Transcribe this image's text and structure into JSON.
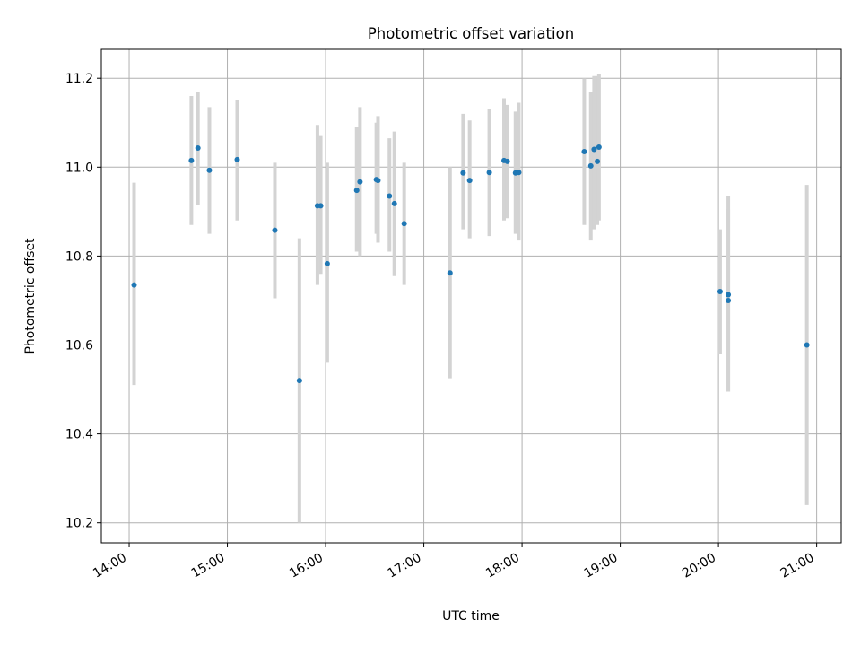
{
  "chart_data": {
    "type": "scatter",
    "title": "Photometric offset variation",
    "xlabel": "UTC time",
    "ylabel": "Photometric offset",
    "grid": true,
    "legend": "none",
    "xlim": [
      "13:43",
      "21:15"
    ],
    "ylim": [
      10.155,
      11.265
    ],
    "x_ticks": [
      "14:00",
      "15:00",
      "16:00",
      "17:00",
      "18:00",
      "19:00",
      "20:00",
      "21:00"
    ],
    "y_ticks": [
      10.2,
      10.4,
      10.6,
      10.8,
      11.0,
      11.2
    ],
    "colors": {
      "point": "#1f77b4",
      "errorbar": "#d3d3d3",
      "grid": "#b0b0b0"
    },
    "series": [
      {
        "points": [
          {
            "x": "14:03",
            "y": 10.735,
            "ylow": 10.51,
            "yhigh": 10.965
          },
          {
            "x": "14:38",
            "y": 11.015,
            "ylow": 10.87,
            "yhigh": 11.16
          },
          {
            "x": "14:42",
            "y": 11.043,
            "ylow": 10.915,
            "yhigh": 11.17
          },
          {
            "x": "14:49",
            "y": 10.993,
            "ylow": 10.85,
            "yhigh": 11.135
          },
          {
            "x": "15:06",
            "y": 11.017,
            "ylow": 10.88,
            "yhigh": 11.15
          },
          {
            "x": "15:29",
            "y": 10.858,
            "ylow": 10.705,
            "yhigh": 11.01
          },
          {
            "x": "15:44",
            "y": 10.52,
            "ylow": 10.2,
            "yhigh": 10.84
          },
          {
            "x": "15:55",
            "y": 10.913,
            "ylow": 10.735,
            "yhigh": 11.095
          },
          {
            "x": "15:57",
            "y": 10.913,
            "ylow": 10.76,
            "yhigh": 11.07
          },
          {
            "x": "16:01",
            "y": 10.783,
            "ylow": 10.56,
            "yhigh": 11.01
          },
          {
            "x": "16:19",
            "y": 10.948,
            "ylow": 10.81,
            "yhigh": 11.09
          },
          {
            "x": "16:21",
            "y": 10.967,
            "ylow": 10.8,
            "yhigh": 11.135
          },
          {
            "x": "16:31",
            "y": 10.972,
            "ylow": 10.85,
            "yhigh": 11.1
          },
          {
            "x": "16:32",
            "y": 10.97,
            "ylow": 10.83,
            "yhigh": 11.115
          },
          {
            "x": "16:39",
            "y": 10.935,
            "ylow": 10.81,
            "yhigh": 11.065
          },
          {
            "x": "16:42",
            "y": 10.918,
            "ylow": 10.755,
            "yhigh": 11.08
          },
          {
            "x": "16:48",
            "y": 10.873,
            "ylow": 10.735,
            "yhigh": 11.01
          },
          {
            "x": "17:16",
            "y": 10.762,
            "ylow": 10.525,
            "yhigh": 11.0
          },
          {
            "x": "17:24",
            "y": 10.987,
            "ylow": 10.86,
            "yhigh": 11.12
          },
          {
            "x": "17:28",
            "y": 10.97,
            "ylow": 10.84,
            "yhigh": 11.105
          },
          {
            "x": "17:40",
            "y": 10.988,
            "ylow": 10.845,
            "yhigh": 11.13
          },
          {
            "x": "17:49",
            "y": 11.015,
            "ylow": 10.88,
            "yhigh": 11.155
          },
          {
            "x": "17:51",
            "y": 11.013,
            "ylow": 10.885,
            "yhigh": 11.14
          },
          {
            "x": "17:56",
            "y": 10.987,
            "ylow": 10.85,
            "yhigh": 11.125
          },
          {
            "x": "17:58",
            "y": 10.988,
            "ylow": 10.835,
            "yhigh": 11.145
          },
          {
            "x": "18:38",
            "y": 11.035,
            "ylow": 10.87,
            "yhigh": 11.2
          },
          {
            "x": "18:42",
            "y": 11.003,
            "ylow": 10.835,
            "yhigh": 11.17
          },
          {
            "x": "18:44",
            "y": 11.04,
            "ylow": 10.86,
            "yhigh": 11.205
          },
          {
            "x": "18:46",
            "y": 11.013,
            "ylow": 10.87,
            "yhigh": 11.205
          },
          {
            "x": "18:47",
            "y": 11.045,
            "ylow": 10.88,
            "yhigh": 11.21
          },
          {
            "x": "20:01",
            "y": 10.72,
            "ylow": 10.58,
            "yhigh": 10.86
          },
          {
            "x": "20:06",
            "y": 10.713,
            "ylow": 10.495,
            "yhigh": 10.935
          },
          {
            "x": "20:06",
            "y": 10.7,
            "ylow": 10.495,
            "yhigh": 10.905
          },
          {
            "x": "20:54",
            "y": 10.6,
            "ylow": 10.24,
            "yhigh": 10.96
          }
        ]
      }
    ]
  }
}
